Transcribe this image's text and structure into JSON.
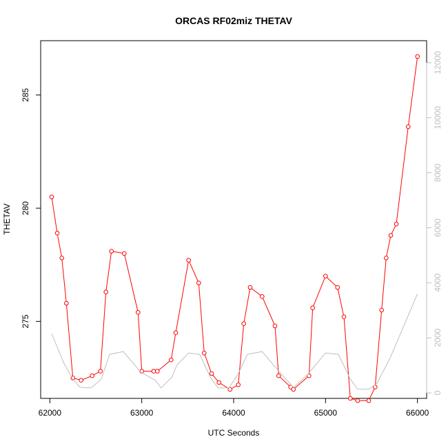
{
  "chart_data": {
    "type": "line",
    "title": "ORCAS RF02miz THETAV",
    "xlabel": "UTC Seconds",
    "ylabel": "THETAV",
    "xlim": [
      61900,
      66100
    ],
    "ylim": [
      271.6,
      287.4
    ],
    "xticks": [
      62000,
      63000,
      64000,
      65000,
      66000
    ],
    "yticks": [
      275,
      280,
      285
    ],
    "y2lim": [
      -200,
      12800
    ],
    "y2ticks": [
      0,
      2000,
      4000,
      6000,
      8000,
      10000,
      12000
    ],
    "grid": false,
    "legend": "none",
    "series": [
      {
        "axis": "left",
        "color": "#ff0000",
        "marker": "open-circle",
        "x": [
          62020,
          62080,
          62130,
          62180,
          62250,
          62340,
          62460,
          62550,
          62610,
          62670,
          62810,
          62960,
          63000,
          63130,
          63170,
          63320,
          63370,
          63510,
          63620,
          63680,
          63760,
          63840,
          63960,
          64050,
          64110,
          64180,
          64310,
          64450,
          64490,
          64620,
          64650,
          64820,
          64860,
          65000,
          65130,
          65200,
          65270,
          65350,
          65470,
          65540,
          65610,
          65660,
          65710,
          65770,
          65900,
          66000
        ],
        "y": [
          280.5,
          278.9,
          277.8,
          275.8,
          272.5,
          272.4,
          272.6,
          272.8,
          276.3,
          278.1,
          278.0,
          275.4,
          272.8,
          272.8,
          272.8,
          273.3,
          274.5,
          277.7,
          276.7,
          273.6,
          272.7,
          272.3,
          272.0,
          272.2,
          274.9,
          276.5,
          276.1,
          274.8,
          272.6,
          272.1,
          272.0,
          272.6,
          275.6,
          277.0,
          276.5,
          275.2,
          271.6,
          271.5,
          271.5,
          272.1,
          275.5,
          277.8,
          278.8,
          279.3,
          283.6,
          286.7
        ]
      },
      {
        "axis": "right",
        "color": "#bebebe",
        "marker": "none",
        "x": [
          62020,
          62150,
          62250,
          62330,
          62450,
          62560,
          62650,
          62800,
          62990,
          63150,
          63210,
          63330,
          63380,
          63510,
          63630,
          63750,
          63830,
          63950,
          64050,
          64150,
          64310,
          64500,
          64650,
          64800,
          65000,
          65140,
          65270,
          65350,
          65470,
          65560,
          65700,
          66000
        ],
        "y": [
          2150,
          1100,
          500,
          200,
          180,
          500,
          1400,
          1500,
          750,
          450,
          180,
          580,
          1000,
          1450,
          1400,
          550,
          180,
          180,
          700,
          1400,
          1500,
          750,
          200,
          650,
          1450,
          1400,
          500,
          130,
          130,
          350,
          1250,
          3600
        ]
      }
    ]
  }
}
